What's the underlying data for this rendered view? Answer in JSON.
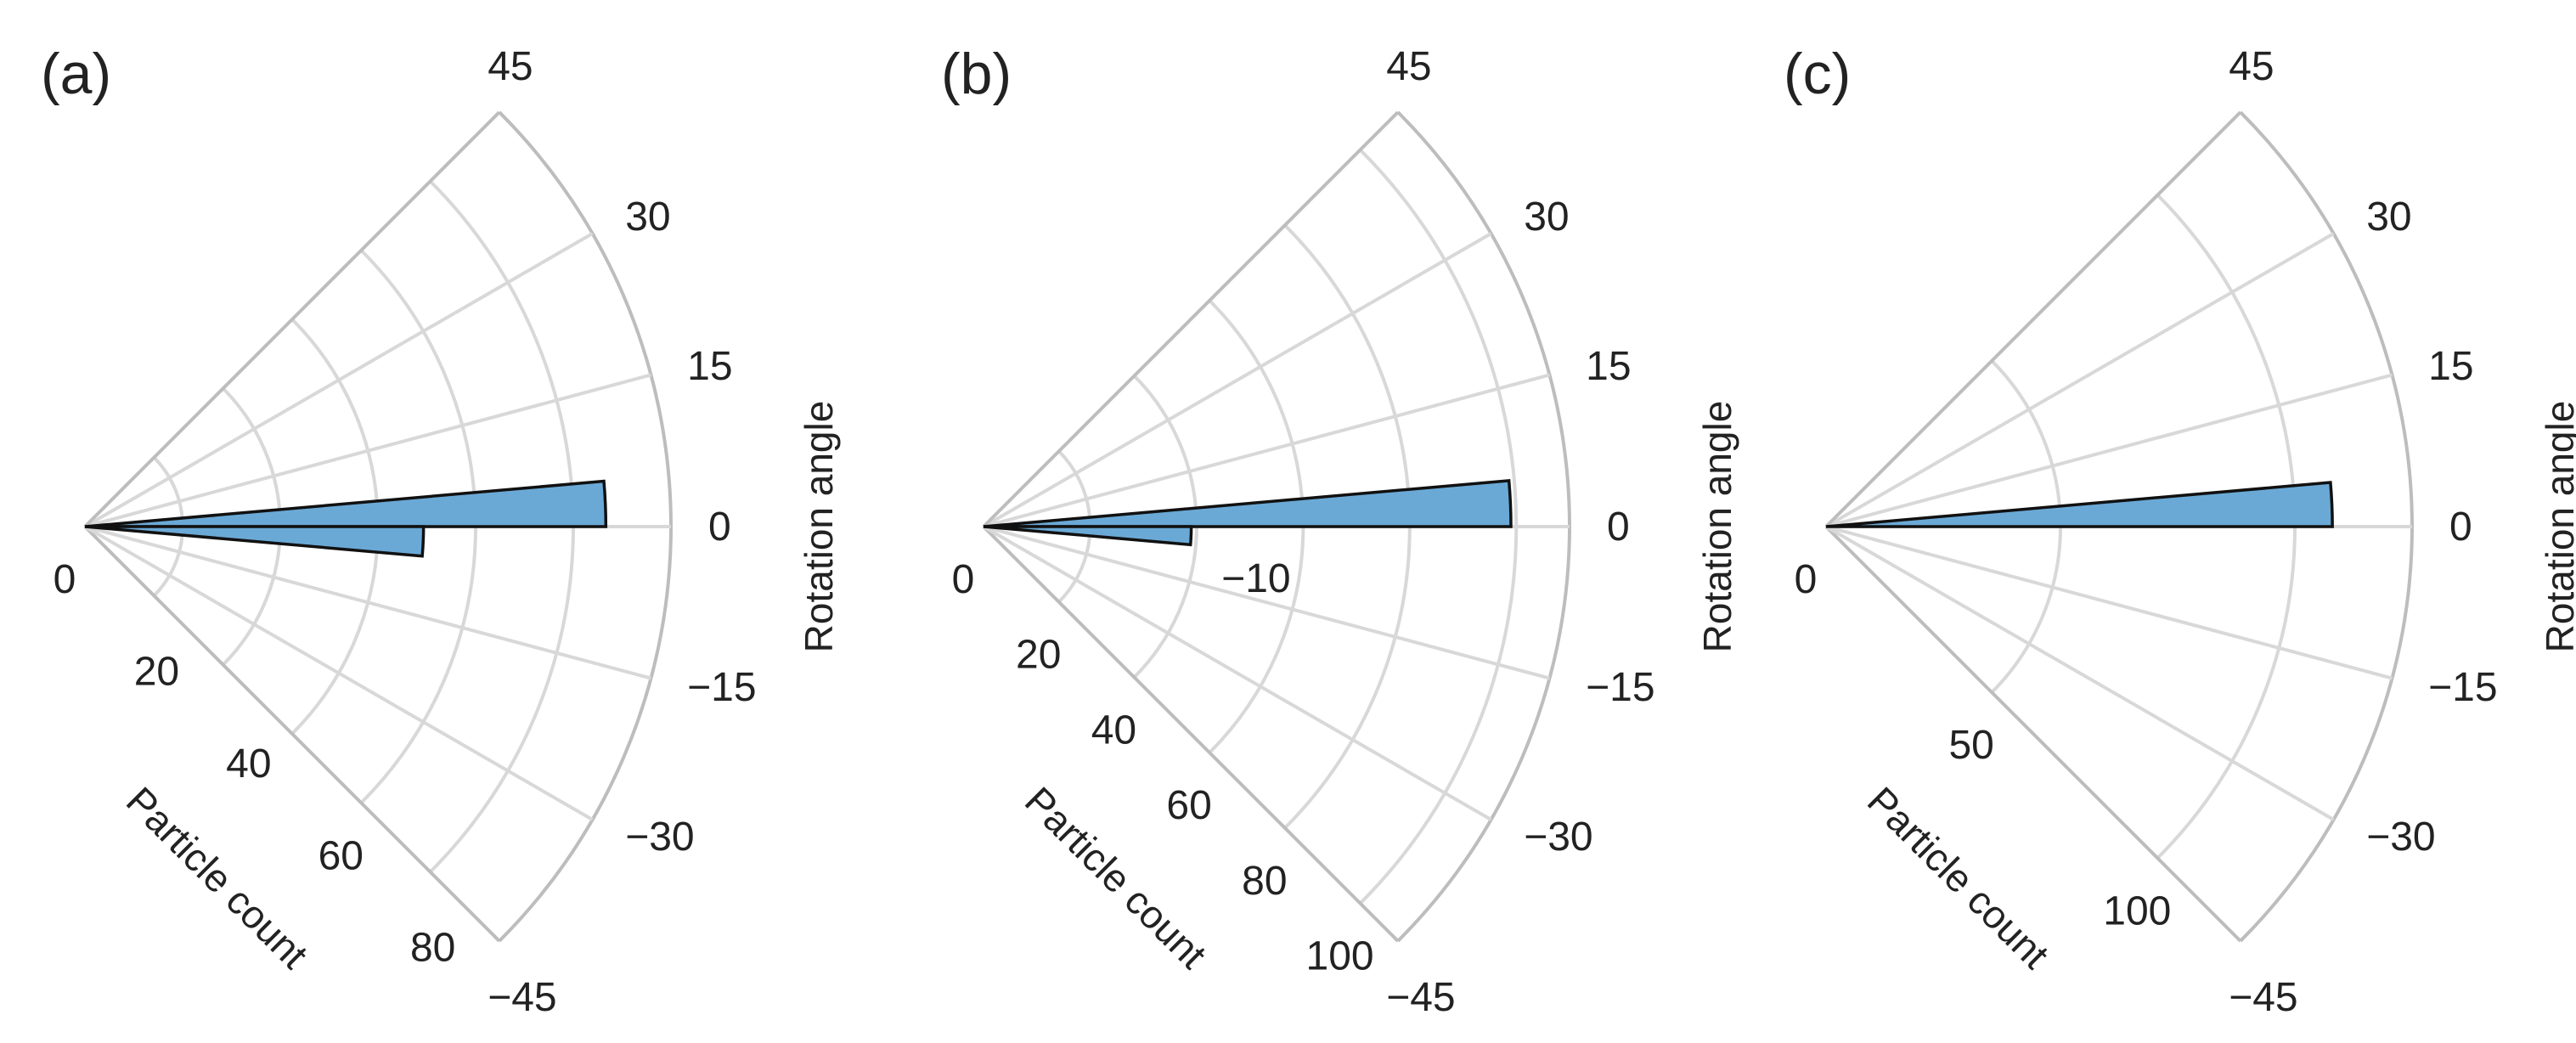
{
  "chart_data": [
    {
      "type": "polar_bar",
      "panel_label": "(a)",
      "theta_label": "Rotation angle",
      "r_label": "Particle count",
      "theta_range": [
        -45,
        45
      ],
      "theta_ticks": [
        -45,
        -30,
        -15,
        0,
        15,
        30,
        45
      ],
      "r_range": [
        0,
        90
      ],
      "r_ticks": [
        0,
        20,
        40,
        60,
        80
      ],
      "r_gridlines": [
        15,
        30,
        45,
        60,
        75,
        90
      ],
      "bar_color": "#6aa9d6",
      "bars": [
        {
          "theta_start": 0,
          "theta_end": 5,
          "count": 80
        },
        {
          "theta_start": -5,
          "theta_end": 0,
          "count": 52
        }
      ]
    },
    {
      "type": "polar_bar",
      "panel_label": "(b)",
      "theta_label": "Rotation angle",
      "r_label": "Particle count",
      "theta_range": [
        -45,
        45
      ],
      "theta_ticks": [
        -45,
        -30,
        -15,
        0,
        15,
        30,
        45
      ],
      "r_range": [
        0,
        110
      ],
      "r_ticks": [
        0,
        20,
        40,
        60,
        80,
        100
      ],
      "r_gridlines": [
        20,
        40,
        60,
        80,
        100,
        110
      ],
      "bar_color": "#6aa9d6",
      "bars": [
        {
          "theta_start": 0,
          "theta_end": 5,
          "count": 99
        },
        {
          "theta_start": -5,
          "theta_end": 0,
          "count": 39
        }
      ],
      "annotations": [
        {
          "text": "−10"
        }
      ]
    },
    {
      "type": "polar_bar",
      "panel_label": "(c)",
      "theta_label": "Rotation angle",
      "r_label": "Particle count",
      "theta_range": [
        -45,
        45
      ],
      "theta_ticks": [
        -45,
        -30,
        -15,
        0,
        15,
        30,
        45
      ],
      "r_range": [
        0,
        125
      ],
      "r_ticks": [
        0,
        50,
        100
      ],
      "r_gridlines": [
        50,
        100,
        125
      ],
      "bar_color": "#6aa9d6",
      "bars": [
        {
          "theta_start": 0,
          "theta_end": 5,
          "count": 108
        }
      ]
    }
  ]
}
